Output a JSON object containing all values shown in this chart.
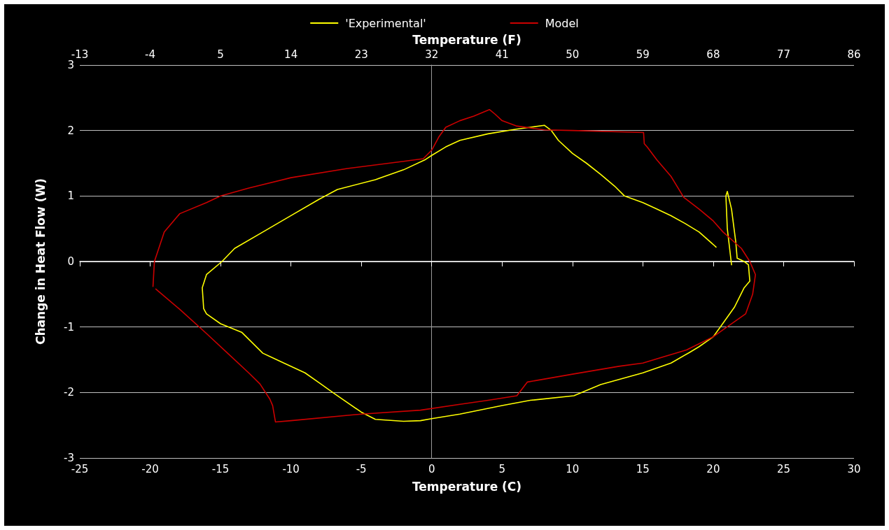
{
  "chart_data": {
    "type": "line",
    "xlabel": "Temperature (C)",
    "x2label": "Temperature (F)",
    "ylabel": "Change in Heat Flow (W)",
    "xlim": [
      -25,
      30
    ],
    "xticks": [
      -25,
      -20,
      -15,
      -10,
      -5,
      0,
      5,
      10,
      15,
      20,
      25,
      30
    ],
    "x2lim": [
      -13,
      86
    ],
    "x2ticks": [
      -13,
      -4,
      5,
      14,
      23,
      32,
      41,
      50,
      59,
      68,
      77,
      86
    ],
    "ylim": [
      -3,
      3
    ],
    "yticks": [
      -3,
      -2,
      -1,
      0,
      1,
      2,
      3
    ],
    "grid": "y",
    "legend": "top",
    "marker": "none",
    "series": [
      {
        "name": "'Experimental'",
        "color": "#ffff00",
        "x": [
          21.3,
          21.0,
          20.9,
          21.0,
          21.3,
          21.6,
          21.7,
          22.2,
          22.5,
          22.6,
          22.2,
          21.5,
          20.5,
          20.0,
          19.0,
          18.3,
          17.0,
          15.0,
          12.0,
          10.1,
          7.0,
          5.0,
          2.0,
          0.0,
          -0.8,
          -2.0,
          -4.0,
          -5.0,
          -6.9,
          -8.0,
          -9.0,
          -10.5,
          -12.0,
          -13.5,
          -15.0,
          -16.0,
          -16.2,
          -16.3,
          -16.0,
          -14.9,
          -14.0,
          -12.0,
          -10.0,
          -8.0,
          -6.7,
          -4.0,
          -2.0,
          -0.5,
          0.0,
          1.0,
          2.0,
          4.0,
          6.0,
          7.0,
          8.0,
          8.5,
          9.0,
          10.0,
          11.0,
          12.0,
          13.0,
          13.7,
          15.0,
          16.0,
          17.0,
          18.0,
          19.0,
          20.1,
          20.2
        ],
        "values": [
          -0.05,
          0.5,
          1.0,
          1.07,
          0.8,
          0.3,
          0.05,
          0.0,
          -0.05,
          -0.3,
          -0.4,
          -0.7,
          -1.0,
          -1.15,
          -1.3,
          -1.39,
          -1.55,
          -1.7,
          -1.88,
          -2.05,
          -2.12,
          -2.2,
          -2.33,
          -2.4,
          -2.43,
          -2.44,
          -2.41,
          -2.3,
          -2.02,
          -1.85,
          -1.7,
          -1.55,
          -1.4,
          -1.08,
          -0.95,
          -0.8,
          -0.72,
          -0.4,
          -0.2,
          0.0,
          0.2,
          0.45,
          0.7,
          0.95,
          1.1,
          1.25,
          1.4,
          1.55,
          1.62,
          1.75,
          1.85,
          1.95,
          2.02,
          2.05,
          2.08,
          2.0,
          1.85,
          1.65,
          1.5,
          1.33,
          1.15,
          1.0,
          0.9,
          0.8,
          0.7,
          0.58,
          0.45,
          0.24,
          0.22
        ]
      },
      {
        "name": "Model",
        "color": "#cc0000",
        "x": [
          -19.8,
          -19.7,
          -19.0,
          -17.9,
          -16.0,
          -15.0,
          -13.0,
          -10.0,
          -6.0,
          -2.0,
          -0.6,
          0.0,
          0.5,
          1.0,
          2.0,
          3.0,
          4.1,
          4.5,
          5.0,
          6.0,
          8.0,
          10.0,
          15.05,
          15.1,
          15.3,
          16.0,
          17.0,
          17.9,
          19.0,
          20.0,
          20.7,
          22.0,
          22.6,
          23.0,
          22.8,
          22.3,
          21.1,
          20.0,
          18.1,
          15.0,
          13.3,
          10.0,
          6.8,
          6.05,
          4.0,
          2.0,
          -0.8,
          -5.0,
          -10.0,
          -11.1,
          -11.3,
          -11.5,
          -12.2,
          -13.0,
          -14.5,
          -16.0,
          -17.9,
          -19.6
        ],
        "values": [
          -0.38,
          0.0,
          0.45,
          0.73,
          0.9,
          1.0,
          1.12,
          1.28,
          1.42,
          1.53,
          1.57,
          1.7,
          1.9,
          2.05,
          2.15,
          2.22,
          2.32,
          2.25,
          2.15,
          2.07,
          2.01,
          2.0,
          1.97,
          1.8,
          1.75,
          1.55,
          1.3,
          0.98,
          0.8,
          0.62,
          0.45,
          0.2,
          0.0,
          -0.2,
          -0.5,
          -0.8,
          -0.98,
          -1.15,
          -1.35,
          -1.55,
          -1.6,
          -1.72,
          -1.84,
          -2.05,
          -2.12,
          -2.18,
          -2.27,
          -2.33,
          -2.43,
          -2.45,
          -2.2,
          -2.1,
          -1.87,
          -1.7,
          -1.4,
          -1.1,
          -0.73,
          -0.42
        ]
      }
    ]
  }
}
